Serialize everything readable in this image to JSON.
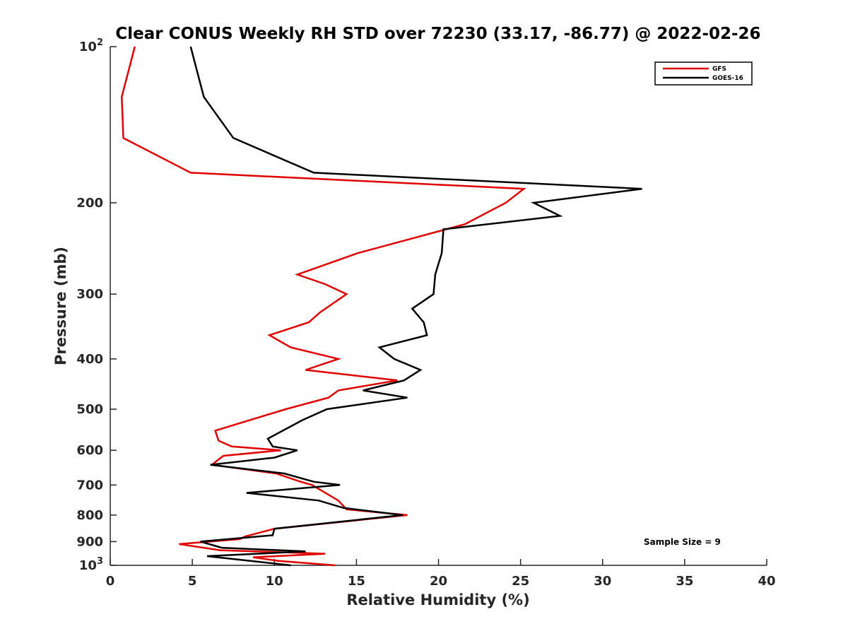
{
  "chart_data": {
    "type": "line",
    "title": "Clear CONUS Weekly RH STD over 72230 (33.17, -86.77) @ 2022-02-26",
    "xlabel": "Relative Humidity (%)",
    "ylabel": "Pressure (mb)",
    "xlim": [
      0,
      40
    ],
    "ylim": [
      100,
      1000
    ],
    "yscale": "log",
    "y_reversed": true,
    "x_ticks": [
      0,
      5,
      10,
      15,
      20,
      25,
      30,
      35,
      40
    ],
    "x_tick_labels": [
      "0",
      "5",
      "10",
      "15",
      "20",
      "25",
      "30",
      "35",
      "40"
    ],
    "y_ticks": [
      {
        "value": 100,
        "base": "10",
        "exp": "2"
      },
      {
        "value": 200,
        "label": "200"
      },
      {
        "value": 300,
        "label": "300"
      },
      {
        "value": 400,
        "label": "400"
      },
      {
        "value": 500,
        "label": "500"
      },
      {
        "value": 600,
        "label": "600"
      },
      {
        "value": 700,
        "label": "700"
      },
      {
        "value": 800,
        "label": "800"
      },
      {
        "value": 900,
        "label": "900"
      },
      {
        "value": 1000,
        "base": "10",
        "exp": "3"
      }
    ],
    "legend_position": "top-right",
    "annotation": "Sample Size = 9",
    "series": [
      {
        "name": "GFS",
        "color": "#e00000",
        "points": [
          [
            1.5,
            100
          ],
          [
            0.7,
            125
          ],
          [
            0.8,
            150
          ],
          [
            4.9,
            175
          ],
          [
            25.2,
            188
          ],
          [
            24.1,
            200
          ],
          [
            21.6,
            220
          ],
          [
            15.1,
            250
          ],
          [
            11.4,
            275
          ],
          [
            13.1,
            287
          ],
          [
            14.4,
            300
          ],
          [
            12.8,
            325
          ],
          [
            12.1,
            340
          ],
          [
            9.7,
            360
          ],
          [
            11.0,
            380
          ],
          [
            13.9,
            400
          ],
          [
            11.9,
            420
          ],
          [
            17.5,
            440
          ],
          [
            13.9,
            460
          ],
          [
            13.3,
            475
          ],
          [
            10.7,
            500
          ],
          [
            6.4,
            550
          ],
          [
            6.6,
            575
          ],
          [
            7.4,
            590
          ],
          [
            10.4,
            600
          ],
          [
            6.9,
            615
          ],
          [
            6.6,
            625
          ],
          [
            6.2,
            640
          ],
          [
            10.1,
            665
          ],
          [
            11.6,
            690
          ],
          [
            12.3,
            700
          ],
          [
            13.9,
            750
          ],
          [
            14.4,
            780
          ],
          [
            18.1,
            800
          ],
          [
            10.0,
            850
          ],
          [
            8.2,
            880
          ],
          [
            7.9,
            890
          ],
          [
            4.2,
            910
          ],
          [
            6.7,
            935
          ],
          [
            13.1,
            950
          ],
          [
            8.7,
            965
          ],
          [
            10.2,
            980
          ],
          [
            13.7,
            1000
          ]
        ]
      },
      {
        "name": "GOES-16",
        "color": "#000000",
        "points": [
          [
            4.9,
            100
          ],
          [
            5.7,
            125
          ],
          [
            7.5,
            150
          ],
          [
            12.4,
            175
          ],
          [
            32.4,
            188
          ],
          [
            25.8,
            200
          ],
          [
            27.4,
            212
          ],
          [
            20.3,
            225
          ],
          [
            20.2,
            250
          ],
          [
            19.8,
            275
          ],
          [
            19.7,
            300
          ],
          [
            18.4,
            320
          ],
          [
            19.1,
            340
          ],
          [
            19.3,
            360
          ],
          [
            16.4,
            380
          ],
          [
            17.3,
            400
          ],
          [
            18.9,
            420
          ],
          [
            17.9,
            440
          ],
          [
            15.4,
            460
          ],
          [
            18.1,
            475
          ],
          [
            13.2,
            500
          ],
          [
            11.7,
            525
          ],
          [
            9.6,
            570
          ],
          [
            9.9,
            590
          ],
          [
            11.4,
            600
          ],
          [
            10.0,
            620
          ],
          [
            6.1,
            640
          ],
          [
            10.6,
            665
          ],
          [
            12.4,
            690
          ],
          [
            14.0,
            700
          ],
          [
            8.3,
            725
          ],
          [
            12.7,
            750
          ],
          [
            14.2,
            775
          ],
          [
            17.8,
            800
          ],
          [
            10.0,
            850
          ],
          [
            9.9,
            875
          ],
          [
            5.5,
            900
          ],
          [
            6.8,
            925
          ],
          [
            11.9,
            940
          ],
          [
            5.9,
            960
          ],
          [
            11.0,
            1000
          ]
        ]
      }
    ]
  }
}
